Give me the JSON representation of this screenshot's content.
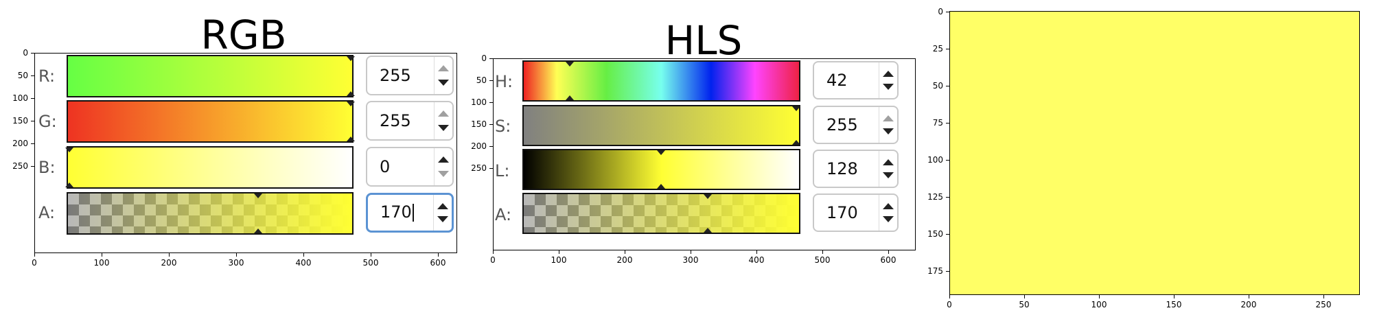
{
  "panels": {
    "rgb": {
      "title": "RGB",
      "xticks": [
        "0",
        "100",
        "200",
        "300",
        "400",
        "500",
        "600"
      ],
      "yticks": [
        "0",
        "50",
        "100",
        "150",
        "200",
        "250"
      ],
      "channels": [
        {
          "label": "R:",
          "value": "255",
          "up_enabled": true,
          "down_enabled": true
        },
        {
          "label": "G:",
          "value": "255",
          "up_enabled": true,
          "down_enabled": true
        },
        {
          "label": "B:",
          "value": "0",
          "up_enabled": true,
          "down_enabled": false
        },
        {
          "label": "A:",
          "value": "170",
          "up_enabled": true,
          "down_enabled": true,
          "focused": true
        }
      ]
    },
    "hls": {
      "title": "HLS",
      "xticks": [
        "0",
        "100",
        "200",
        "300",
        "400",
        "500",
        "600"
      ],
      "yticks": [
        "0",
        "50",
        "100",
        "150",
        "200",
        "250"
      ],
      "channels": [
        {
          "label": "H:",
          "value": "42",
          "up_enabled": true,
          "down_enabled": true
        },
        {
          "label": "S:",
          "value": "255",
          "up_enabled": true,
          "down_enabled": true
        },
        {
          "label": "L:",
          "value": "128",
          "up_enabled": true,
          "down_enabled": true
        },
        {
          "label": "A:",
          "value": "170",
          "up_enabled": true,
          "down_enabled": true
        }
      ]
    },
    "preview": {
      "xticks": [
        "0",
        "50",
        "100",
        "150",
        "200",
        "250"
      ],
      "yticks": [
        "0",
        "25",
        "50",
        "75",
        "100",
        "125",
        "150",
        "175"
      ],
      "color": "#FFFF66"
    }
  },
  "colors": {
    "current": "#FFFF66",
    "focus_border": "#5b93d3"
  }
}
